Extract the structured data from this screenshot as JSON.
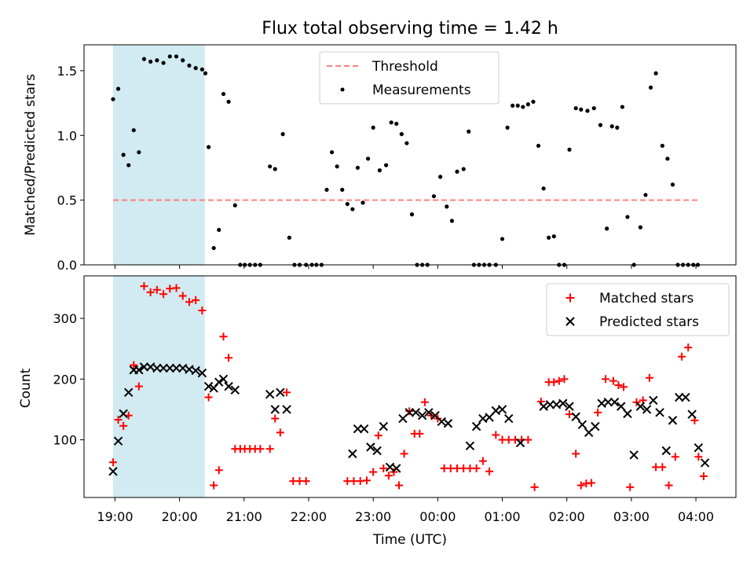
{
  "chart_data": [
    {
      "type": "scatter",
      "title": "Flux total observing time = 1.42 h",
      "xlabel": "",
      "ylabel": "Matched/Predicted stars",
      "ylim": [
        0,
        1.7
      ],
      "yticks": [
        "0.0",
        "0.5",
        "1.0",
        "1.5"
      ],
      "ytick_values": [
        0,
        0.5,
        1.0,
        1.5
      ],
      "highlight_span_hours": [
        -0.03,
        1.39
      ],
      "highlight_color": "#add8e6",
      "legend_position": "upper center",
      "series": [
        {
          "name": "Threshold",
          "kind": "dashed-line",
          "color": "#ff7f7f",
          "x": [
            -0.03,
            9.03
          ],
          "y": [
            0.5,
            0.5
          ]
        },
        {
          "name": "Measurements",
          "kind": "points",
          "color": "#000000",
          "x": [
            -0.03,
            0.05,
            0.13,
            0.21,
            0.29,
            0.37,
            0.45,
            0.55,
            0.65,
            0.75,
            0.85,
            0.95,
            1.05,
            1.15,
            1.25,
            1.35,
            1.4,
            1.45,
            1.53,
            1.61,
            1.68,
            1.76,
            1.86,
            1.94,
            2.01,
            2.09,
            2.17,
            2.25,
            2.4,
            2.48,
            2.6,
            2.7,
            2.78,
            2.86,
            2.96,
            3.05,
            3.12,
            3.2,
            3.28,
            3.36,
            3.44,
            3.52,
            3.6,
            3.68,
            3.76,
            3.84,
            3.92,
            4.0,
            4.1,
            4.2,
            4.28,
            4.36,
            4.44,
            4.52,
            4.6,
            4.68,
            4.76,
            4.84,
            4.94,
            5.04,
            5.14,
            5.22,
            5.3,
            5.4,
            5.48,
            5.56,
            5.64,
            5.72,
            5.8,
            5.9,
            6.0,
            6.08,
            6.16,
            6.24,
            6.32,
            6.4,
            6.48,
            6.56,
            6.64,
            6.72,
            6.8,
            6.88,
            6.96,
            7.04,
            7.14,
            7.22,
            7.32,
            7.42,
            7.52,
            7.62,
            7.7,
            7.78,
            7.86,
            7.94,
            8.04,
            8.14,
            8.22,
            8.3,
            8.38,
            8.48,
            8.56,
            8.64,
            8.72,
            8.8,
            8.88,
            8.96,
            9.03
          ],
          "y": [
            1.28,
            1.36,
            0.85,
            0.77,
            1.04,
            0.87,
            1.59,
            1.57,
            1.58,
            1.56,
            1.61,
            1.61,
            1.58,
            1.54,
            1.52,
            1.51,
            1.48,
            0.91,
            0.13,
            0.27,
            1.32,
            1.26,
            0.46,
            0.0,
            0.0,
            0.0,
            0.0,
            0.0,
            0.76,
            0.74,
            1.01,
            0.21,
            0.0,
            0.0,
            0.0,
            0.0,
            0.0,
            0.0,
            0.58,
            0.87,
            0.76,
            0.58,
            0.47,
            0.43,
            0.75,
            0.48,
            0.82,
            1.06,
            0.73,
            0.77,
            1.1,
            1.09,
            1.01,
            0.94,
            0.39,
            0.0,
            0.0,
            0.0,
            0.53,
            0.68,
            0.45,
            0.34,
            0.72,
            0.74,
            1.03,
            0.0,
            0.0,
            0.0,
            0.0,
            0.0,
            0.2,
            1.06,
            1.23,
            1.23,
            1.22,
            1.24,
            1.26,
            0.92,
            0.59,
            0.21,
            0.22,
            0.0,
            0.0,
            0.89,
            1.21,
            1.2,
            1.19,
            1.21,
            1.08,
            0.28,
            1.07,
            1.06,
            1.22,
            0.37,
            0.0,
            0.29,
            0.54,
            1.37,
            1.48,
            0.92,
            0.82,
            0.62,
            0.0,
            0.0,
            0.0,
            0.0,
            0.0
          ]
        }
      ]
    },
    {
      "type": "scatter",
      "title": "",
      "xlabel": "Time (UTC)",
      "ylabel": "Count",
      "ylim": [
        5,
        370
      ],
      "yticks": [
        "100",
        "200",
        "300"
      ],
      "ytick_values": [
        100,
        200,
        300
      ],
      "xlim_hours": [
        -0.48,
        9.62
      ],
      "xticks": [
        "19:00",
        "20:00",
        "21:00",
        "22:00",
        "23:00",
        "00:00",
        "01:00",
        "02:00",
        "03:00",
        "04:00"
      ],
      "xtick_hours": [
        0,
        1,
        2,
        3,
        4,
        5,
        6,
        7,
        8,
        9
      ],
      "highlight_span_hours": [
        -0.03,
        1.39
      ],
      "highlight_color": "#add8e6",
      "legend_position": "upper right",
      "series": [
        {
          "name": "Matched stars",
          "marker": "plus",
          "color": "#ff0000",
          "x": [
            -0.03,
            0.05,
            0.13,
            0.21,
            0.29,
            0.37,
            0.45,
            0.55,
            0.65,
            0.75,
            0.85,
            0.95,
            1.05,
            1.15,
            1.25,
            1.35,
            1.45,
            1.53,
            1.61,
            1.68,
            1.76,
            1.86,
            1.94,
            2.01,
            2.09,
            2.17,
            2.25,
            2.4,
            2.48,
            2.56,
            2.66,
            2.76,
            2.86,
            2.96,
            3.6,
            3.7,
            3.8,
            3.9,
            4.0,
            4.08,
            4.16,
            4.24,
            4.32,
            4.4,
            4.48,
            4.56,
            4.64,
            4.72,
            4.8,
            4.9,
            5.0,
            5.1,
            5.2,
            5.3,
            5.4,
            5.5,
            5.6,
            5.7,
            5.8,
            5.9,
            6.0,
            6.1,
            6.2,
            6.3,
            6.4,
            6.5,
            6.6,
            6.72,
            6.8,
            6.88,
            6.96,
            7.04,
            7.14,
            7.22,
            7.3,
            7.38,
            7.48,
            7.6,
            7.72,
            7.8,
            7.88,
            7.98,
            8.08,
            8.18,
            8.28,
            8.38,
            8.48,
            8.58,
            8.68,
            8.78,
            8.88,
            8.98,
            9.04,
            9.12
          ],
          "y": [
            63,
            133,
            123,
            140,
            223,
            188,
            353,
            343,
            347,
            340,
            349,
            350,
            337,
            327,
            330,
            313,
            170,
            25,
            50,
            270,
            235,
            85,
            85,
            85,
            85,
            85,
            85,
            85,
            135,
            112,
            178,
            32,
            32,
            32,
            32,
            32,
            32,
            33,
            47,
            107,
            53,
            41,
            47,
            25,
            77,
            147,
            110,
            110,
            162,
            140,
            135,
            53,
            53,
            53,
            53,
            53,
            53,
            65,
            48,
            108,
            100,
            100,
            100,
            100,
            100,
            22,
            163,
            195,
            195,
            197,
            200,
            142,
            77,
            25,
            28,
            29,
            145,
            200,
            197,
            190,
            187,
            22,
            162,
            165,
            202,
            55,
            55,
            25,
            72,
            237,
            252,
            132,
            72,
            40
          ]
        },
        {
          "name": "Predicted stars",
          "marker": "x",
          "color": "#000000",
          "x": [
            -0.03,
            0.05,
            0.13,
            0.21,
            0.29,
            0.37,
            0.45,
            0.55,
            0.65,
            0.75,
            0.85,
            0.95,
            1.05,
            1.15,
            1.25,
            1.35,
            1.45,
            1.53,
            1.61,
            1.68,
            1.76,
            1.86,
            2.4,
            2.48,
            2.56,
            2.66,
            3.68,
            3.76,
            3.86,
            3.96,
            4.06,
            4.16,
            4.26,
            4.36,
            4.46,
            4.56,
            4.66,
            4.76,
            4.86,
            4.96,
            5.06,
            5.16,
            5.5,
            5.6,
            5.7,
            5.8,
            5.9,
            6.0,
            6.1,
            6.28,
            6.64,
            6.74,
            6.84,
            6.94,
            7.04,
            7.14,
            7.24,
            7.34,
            7.44,
            7.54,
            7.64,
            7.74,
            7.84,
            7.94,
            8.04,
            8.14,
            8.24,
            8.34,
            8.44,
            8.54,
            8.64,
            8.74,
            8.84,
            8.94,
            9.04,
            9.14
          ],
          "y": [
            48,
            98,
            143,
            178,
            215,
            215,
            220,
            220,
            218,
            218,
            218,
            218,
            218,
            216,
            214,
            210,
            188,
            185,
            195,
            200,
            188,
            182,
            175,
            150,
            178,
            150,
            77,
            118,
            118,
            88,
            82,
            122,
            55,
            53,
            135,
            145,
            145,
            140,
            145,
            140,
            130,
            127,
            90,
            122,
            135,
            137,
            148,
            150,
            135,
            95,
            155,
            158,
            158,
            160,
            155,
            138,
            125,
            112,
            122,
            160,
            162,
            162,
            155,
            143,
            75,
            155,
            150,
            165,
            145,
            82,
            132,
            170,
            170,
            142,
            87,
            62
          ]
        }
      ]
    }
  ]
}
